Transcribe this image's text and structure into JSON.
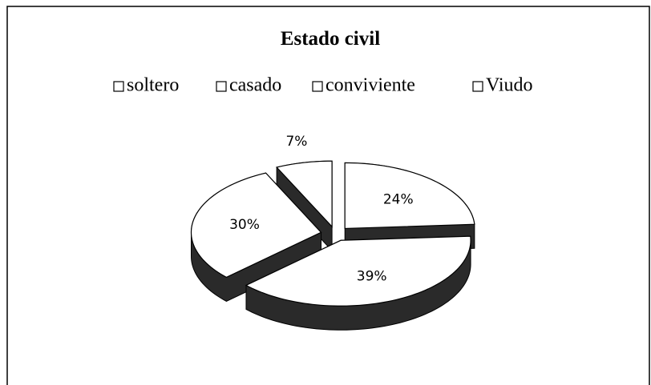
{
  "chart_data": {
    "type": "pie3d",
    "title": "Estado civil",
    "categories": [
      "soltero",
      "casado",
      "conviviente",
      "Viudo"
    ],
    "values": [
      24,
      39,
      30,
      7
    ],
    "value_labels": [
      "24%",
      "39%",
      "30%",
      "7%"
    ],
    "colors": [
      "#ffffff",
      "#ffffff",
      "#ffffff",
      "#ffffff"
    ],
    "legend": "top",
    "exploded": true
  }
}
